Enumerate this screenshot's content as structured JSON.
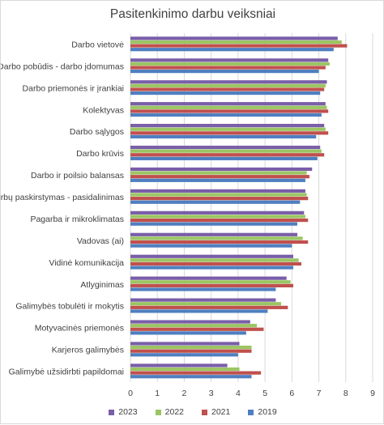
{
  "chart_data": {
    "type": "bar",
    "orientation": "horizontal",
    "title": "Pasitenkinimo darbu veiksniai",
    "xlabel": "",
    "ylabel": "",
    "xlim": [
      0,
      9
    ],
    "xticks": [
      0,
      1,
      2,
      3,
      4,
      5,
      6,
      7,
      8,
      9
    ],
    "grid": "vertical",
    "legend_position": "bottom",
    "categories": [
      "Darbo vietovė",
      "Darbo pobūdis - darbo įdomumas",
      "Darbo priemonės ir įrankiai",
      "Kolektyvas",
      "Darbo sąlygos",
      "Darbo krūvis",
      "Darbo ir poilsio balansas",
      "Darbų paskirstymas - pasidalinimas",
      "Pagarba ir mikroklimatas",
      "Vadovas (ai)",
      "Vidinė komunikacija",
      "Atlyginimas",
      "Galimybės tobulėti ir mokytis",
      "Motyvacinės priemonės",
      "Karjeros galimybės",
      "Galimybė užsidirbti papildomai"
    ],
    "series": [
      {
        "name": "2023",
        "color": "#7a5ea8",
        "values": [
          7.7,
          7.35,
          7.3,
          7.25,
          7.2,
          7.05,
          6.75,
          6.5,
          6.45,
          6.2,
          6.05,
          5.8,
          5.4,
          4.45,
          4.05,
          3.6
        ]
      },
      {
        "name": "2022",
        "color": "#9bc563",
        "values": [
          7.85,
          7.4,
          7.25,
          7.3,
          7.25,
          7.1,
          6.55,
          6.55,
          6.5,
          6.4,
          6.25,
          5.95,
          5.6,
          4.7,
          4.5,
          4.05
        ]
      },
      {
        "name": "2021",
        "color": "#c0504d",
        "values": [
          8.05,
          7.25,
          7.2,
          7.35,
          7.35,
          7.2,
          6.65,
          6.6,
          6.6,
          6.6,
          6.35,
          6.05,
          5.85,
          4.95,
          4.5,
          4.85
        ]
      },
      {
        "name": "2019",
        "color": "#4f7fc0",
        "values": [
          7.55,
          7.0,
          7.05,
          7.1,
          6.9,
          6.95,
          6.5,
          6.3,
          6.2,
          6.0,
          6.05,
          5.4,
          5.1,
          4.3,
          4.0,
          4.5
        ]
      }
    ]
  }
}
